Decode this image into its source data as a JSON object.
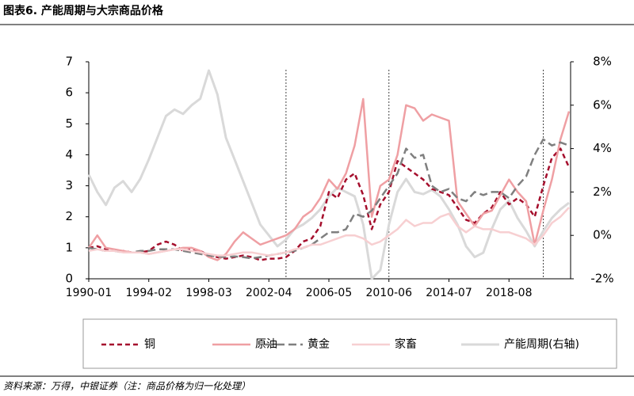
{
  "chart_data": {
    "type": "line",
    "title": "图表6. 产能周期与大宗商品价格",
    "source": "资料来源：万得，中银证券（注：商品价格为归一化处理）",
    "categories": [
      "1990-01",
      "1990-08",
      "1991-03",
      "1991-10",
      "1992-05",
      "1992-12",
      "1993-07",
      "1994-02",
      "1994-09",
      "1995-04",
      "1995-11",
      "1996-06",
      "1997-01",
      "1997-08",
      "1998-03",
      "1998-10",
      "1999-05",
      "1999-12",
      "2000-07",
      "2001-02",
      "2001-09",
      "2002-04",
      "2002-11",
      "2003-06",
      "2004-01",
      "2004-08",
      "2005-03",
      "2005-10",
      "2006-05",
      "2006-12",
      "2007-07",
      "2008-02",
      "2008-09",
      "2009-04",
      "2009-11",
      "2010-06",
      "2011-01",
      "2011-08",
      "2012-03",
      "2012-10",
      "2013-05",
      "2013-12",
      "2014-07",
      "2015-02",
      "2015-09",
      "2016-04",
      "2016-11",
      "2017-06",
      "2018-01",
      "2018-08",
      "2019-03",
      "2019-10",
      "2020-05",
      "2020-12",
      "2021-07",
      "2022-02",
      "2022-09"
    ],
    "xticks": [
      "1990-01",
      "1994-02",
      "1998-03",
      "2002-04",
      "2006-05",
      "2010-06",
      "2014-07",
      "2018-08"
    ],
    "vlines": [
      "2003-06",
      "2010-06",
      "2020-12"
    ],
    "ylim": [
      0,
      7
    ],
    "yticks": [
      0,
      1,
      2,
      3,
      4,
      5,
      6,
      7
    ],
    "y2lim": [
      -2,
      8
    ],
    "y2ticks": [
      {
        "value": -2,
        "label": "-2%"
      },
      {
        "value": 0,
        "label": "0%"
      },
      {
        "value": 2,
        "label": "2%"
      },
      {
        "value": 4,
        "label": "4%"
      },
      {
        "value": 6,
        "label": "6%"
      },
      {
        "value": 8,
        "label": "8%"
      }
    ],
    "series": [
      {
        "name": "铜",
        "color": "#a50f2d",
        "dash": "6,4",
        "width": 2.5,
        "values": [
          1.0,
          1.05,
          0.95,
          0.9,
          0.9,
          0.85,
          0.85,
          0.9,
          1.1,
          1.2,
          1.1,
          0.9,
          0.95,
          0.9,
          0.75,
          0.7,
          0.65,
          0.7,
          0.75,
          0.7,
          0.6,
          0.65,
          0.65,
          0.7,
          0.9,
          1.2,
          1.3,
          1.7,
          2.8,
          2.6,
          3.2,
          3.4,
          2.7,
          1.6,
          2.4,
          2.8,
          3.8,
          3.6,
          3.4,
          3.2,
          2.9,
          2.8,
          2.7,
          2.3,
          1.9,
          1.8,
          2.1,
          2.3,
          2.8,
          2.4,
          2.6,
          2.4,
          2.0,
          3.0,
          3.9,
          4.2,
          3.6
        ]
      },
      {
        "name": "原油",
        "color": "#ef9fa3",
        "width": 2.5,
        "values": [
          1.0,
          1.4,
          1.0,
          0.95,
          0.9,
          0.85,
          0.85,
          0.8,
          0.85,
          0.9,
          0.95,
          1.0,
          1.0,
          0.9,
          0.7,
          0.6,
          0.8,
          1.2,
          1.5,
          1.3,
          1.1,
          1.2,
          1.3,
          1.4,
          1.6,
          2.0,
          2.2,
          2.6,
          3.2,
          2.9,
          3.4,
          4.3,
          5.8,
          2.0,
          3.0,
          3.2,
          4.0,
          5.6,
          5.5,
          5.1,
          5.3,
          5.2,
          5.1,
          2.5,
          2.1,
          1.7,
          2.1,
          2.2,
          2.7,
          3.2,
          2.8,
          2.5,
          1.1,
          2.2,
          3.2,
          4.5,
          5.4
        ]
      },
      {
        "name": "黄金",
        "color": "#7f7f7f",
        "dash": "10,5",
        "width": 2.5,
        "values": [
          1.0,
          0.95,
          0.9,
          0.9,
          0.85,
          0.85,
          0.9,
          0.9,
          0.95,
          0.95,
          0.95,
          0.9,
          0.85,
          0.8,
          0.75,
          0.72,
          0.7,
          0.72,
          0.7,
          0.66,
          0.7,
          0.75,
          0.8,
          0.85,
          0.9,
          1.0,
          1.1,
          1.3,
          1.5,
          1.5,
          1.6,
          2.1,
          2.0,
          2.2,
          2.6,
          3.0,
          3.4,
          4.2,
          3.9,
          4.0,
          3.0,
          2.8,
          2.9,
          2.6,
          2.5,
          2.8,
          2.7,
          2.8,
          2.8,
          2.6,
          3.0,
          3.3,
          4.0,
          4.5,
          4.3,
          4.4,
          4.3
        ]
      },
      {
        "name": "家畜",
        "color": "#f7cfd1",
        "width": 2.5,
        "values": [
          0.9,
          0.95,
          0.9,
          0.9,
          0.85,
          0.85,
          0.85,
          0.8,
          0.85,
          0.9,
          0.95,
          0.95,
          0.9,
          0.85,
          0.8,
          0.75,
          0.75,
          0.8,
          0.85,
          0.85,
          0.8,
          0.75,
          0.8,
          0.85,
          0.95,
          1.0,
          1.1,
          1.1,
          1.2,
          1.3,
          1.4,
          1.4,
          1.3,
          1.1,
          1.2,
          1.4,
          1.6,
          1.9,
          1.7,
          1.8,
          1.8,
          2.0,
          2.1,
          1.7,
          1.5,
          1.7,
          1.6,
          1.6,
          1.5,
          1.5,
          1.4,
          1.3,
          1.1,
          1.4,
          1.8,
          2.0,
          2.3
        ]
      },
      {
        "name": "产能周期(右轴)",
        "color": "#d9d9d9",
        "width": 3,
        "axis": "y2",
        "values": [
          2.8,
          2.0,
          1.4,
          2.2,
          2.5,
          2.0,
          2.6,
          3.5,
          4.5,
          5.5,
          5.8,
          5.6,
          6.0,
          6.3,
          7.6,
          6.5,
          4.5,
          3.5,
          2.5,
          1.5,
          0.5,
          0.0,
          -0.5,
          -0.2,
          0.3,
          0.5,
          0.8,
          1.2,
          1.8,
          2.2,
          2.0,
          1.8,
          0.5,
          -2.0,
          -1.6,
          0.5,
          2.0,
          2.6,
          2.0,
          1.9,
          2.1,
          1.8,
          1.2,
          0.5,
          -0.5,
          -1.0,
          -0.8,
          0.3,
          1.2,
          1.6,
          0.8,
          0.2,
          -0.5,
          0.2,
          0.8,
          1.2,
          1.5
        ]
      }
    ]
  }
}
